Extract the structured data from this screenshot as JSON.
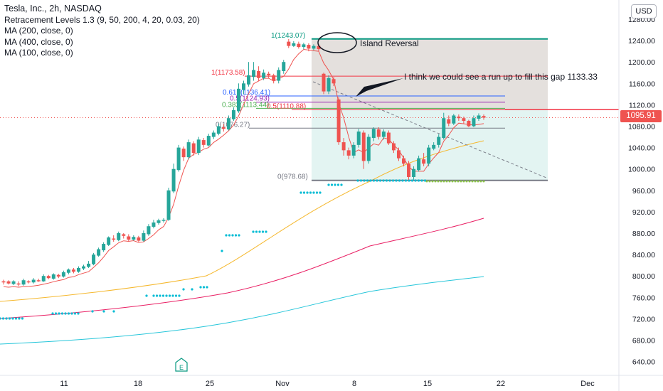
{
  "header": {
    "title": "Tesla, Inc., 2h, NASDAQ",
    "indicators": [
      "Retracement Levels 1.3 (9, 50, 200, 4, 20, 0.03, 20)",
      "MA (200, close, 0)",
      "MA (400, close, 0)",
      "MA (100, close, 0)"
    ],
    "currency_button": "USD"
  },
  "last_price": "1095.91",
  "earnings_marker": "E",
  "colors": {
    "up": "#26a69a",
    "down": "#ef5350",
    "ma100": "#f5b82e",
    "ma200": "#e91e63",
    "ma400": "#26c6da",
    "dots": "#00bcd4",
    "fib_gray": "#787b86",
    "fib_red": "#f23645",
    "fib_blue": "#2962ff",
    "fib_green": "#4caf50",
    "fib_teal": "#089981"
  },
  "fib_levels": [
    {
      "label": "1(1243.07)",
      "value": 1243.07,
      "color": "#089981"
    },
    {
      "label": "1(1173.58)",
      "value": 1173.58,
      "color": "#f23645"
    },
    {
      "label": "0.618(1136.41)",
      "value": 1136.41,
      "color": "#2962ff"
    },
    {
      "label": "0.5(1124.93)",
      "value": 1124.93,
      "color": "#9c27b0"
    },
    {
      "label": "0.382(1113.44)",
      "value": 1113.44,
      "color": "#4caf50"
    },
    {
      "label": "0.5(1110.88)",
      "value": 1110.88,
      "color": "#f23645"
    },
    {
      "label": "0(1076.27)",
      "value": 1076.27,
      "color": "#787b86"
    },
    {
      "label": "0(978.68)",
      "value": 978.68,
      "color": "#787b86"
    }
  ],
  "annotations": {
    "island": "Island Reversal",
    "note": "I think we could see a run up to fill this gap 1133.33"
  },
  "chart_data": {
    "type": "candlestick",
    "title": "Tesla, Inc., 2h, NASDAQ",
    "ylim": [
      620,
      1290
    ],
    "y_ticks": [
      "1280.00",
      "1240.00",
      "1200.00",
      "1160.00",
      "1120.00",
      "1080.00",
      "1040.00",
      "1000.00",
      "960.00",
      "920.00",
      "880.00",
      "840.00",
      "800.00",
      "760.00",
      "720.00",
      "680.00",
      "640.00"
    ],
    "x_ticks": [
      "11",
      "18",
      "25",
      "Nov",
      "8",
      "15",
      "22",
      "Dec"
    ],
    "candles": [
      [
        790,
        788,
        784,
        793
      ],
      [
        790,
        786,
        784,
        792
      ],
      [
        785,
        790,
        783,
        792
      ],
      [
        786,
        784,
        781,
        790
      ],
      [
        784,
        792,
        782,
        795
      ],
      [
        790,
        788,
        786,
        792
      ],
      [
        788,
        793,
        786,
        796
      ],
      [
        792,
        790,
        789,
        795
      ],
      [
        790,
        800,
        789,
        803
      ],
      [
        800,
        796,
        794,
        802
      ],
      [
        795,
        803,
        793,
        805
      ],
      [
        802,
        799,
        796,
        804
      ],
      [
        799,
        807,
        797,
        810
      ],
      [
        806,
        812,
        803,
        814
      ],
      [
        812,
        808,
        805,
        815
      ],
      [
        808,
        815,
        806,
        818
      ],
      [
        814,
        818,
        811,
        821
      ],
      [
        817,
        823,
        815,
        828
      ],
      [
        822,
        840,
        820,
        843
      ],
      [
        838,
        850,
        836,
        853
      ],
      [
        848,
        860,
        845,
        863
      ],
      [
        858,
        872,
        856,
        874
      ],
      [
        870,
        868,
        864,
        876
      ],
      [
        867,
        880,
        865,
        883
      ],
      [
        878,
        875,
        870,
        880
      ],
      [
        874,
        868,
        865,
        878
      ],
      [
        868,
        873,
        866,
        876
      ],
      [
        872,
        866,
        864,
        875
      ],
      [
        866,
        880,
        864,
        885
      ],
      [
        878,
        893,
        875,
        897
      ],
      [
        892,
        900,
        889,
        905
      ],
      [
        899,
        904,
        896,
        907
      ],
      [
        903,
        905,
        900,
        908
      ],
      [
        905,
        960,
        903,
        965
      ],
      [
        958,
        1000,
        955,
        1010
      ],
      [
        998,
        1040,
        995,
        1045
      ],
      [
        1038,
        1022,
        1015,
        1042
      ],
      [
        1022,
        1050,
        1018,
        1055
      ],
      [
        1048,
        1030,
        1025,
        1052
      ],
      [
        1030,
        1055,
        1026,
        1060
      ],
      [
        1054,
        1045,
        1040,
        1058
      ],
      [
        1044,
        1062,
        1042,
        1066
      ],
      [
        1060,
        1068,
        1056,
        1072
      ],
      [
        1066,
        1080,
        1063,
        1085
      ],
      [
        1078,
        1075,
        1070,
        1084
      ],
      [
        1074,
        1095,
        1072,
        1100
      ],
      [
        1093,
        1110,
        1090,
        1115
      ],
      [
        1108,
        1150,
        1105,
        1160
      ],
      [
        1148,
        1160,
        1140,
        1165
      ],
      [
        1158,
        1175,
        1154,
        1200
      ],
      [
        1172,
        1185,
        1165,
        1200
      ],
      [
        1183,
        1170,
        1165,
        1192
      ],
      [
        1170,
        1180,
        1166,
        1186
      ],
      [
        1178,
        1175,
        1170,
        1182
      ],
      [
        1175,
        1165,
        1160,
        1178
      ],
      [
        1165,
        1185,
        1160,
        1190
      ],
      [
        1183,
        1200,
        1178,
        1204
      ],
      [
        1238,
        1230,
        1226,
        1243
      ],
      [
        1230,
        1235,
        1228,
        1239
      ],
      [
        1234,
        1228,
        1225,
        1238
      ],
      [
        1228,
        1233,
        1224,
        1236
      ],
      [
        1232,
        1225,
        1220,
        1235
      ],
      [
        1225,
        1230,
        1222,
        1233
      ],
      [
        1230,
        1224,
        1220,
        1234
      ],
      [
        1178,
        1145,
        1140,
        1180
      ],
      [
        1145,
        1170,
        1140,
        1175
      ],
      [
        1168,
        1160,
        1155,
        1172
      ],
      [
        1130,
        1050,
        1045,
        1135
      ],
      [
        1050,
        1035,
        1025,
        1058
      ],
      [
        1035,
        1025,
        1018,
        1040
      ],
      [
        1025,
        1045,
        1020,
        1050
      ],
      [
        1045,
        1070,
        1040,
        1075
      ],
      [
        1068,
        1015,
        1000,
        1072
      ],
      [
        1015,
        1060,
        1010,
        1065
      ],
      [
        1058,
        1075,
        1052,
        1078
      ],
      [
        1074,
        1060,
        1055,
        1078
      ],
      [
        1060,
        1070,
        1055,
        1074
      ],
      [
        1068,
        1048,
        1045,
        1072
      ],
      [
        1048,
        1035,
        1030,
        1052
      ],
      [
        1035,
        1020,
        1015,
        1040
      ],
      [
        1020,
        1010,
        1005,
        1025
      ],
      [
        1010,
        985,
        980,
        1015
      ],
      [
        985,
        1000,
        980,
        1005
      ],
      [
        998,
        1020,
        995,
        1025
      ],
      [
        1018,
        1010,
        1005,
        1030
      ],
      [
        1010,
        1040,
        1005,
        1045
      ],
      [
        1038,
        1045,
        1035,
        1050
      ],
      [
        1045,
        1060,
        1040,
        1065
      ],
      [
        1058,
        1095,
        1055,
        1105
      ],
      [
        1093,
        1085,
        1080,
        1100
      ],
      [
        1085,
        1100,
        1082,
        1103
      ],
      [
        1098,
        1095,
        1090,
        1102
      ],
      [
        1095,
        1090,
        1085,
        1098
      ],
      [
        1090,
        1080,
        1078,
        1092
      ],
      [
        1080,
        1095,
        1078,
        1100
      ],
      [
        1094,
        1100,
        1090,
        1104
      ],
      [
        1099,
        1096,
        1092,
        1102
      ]
    ]
  }
}
